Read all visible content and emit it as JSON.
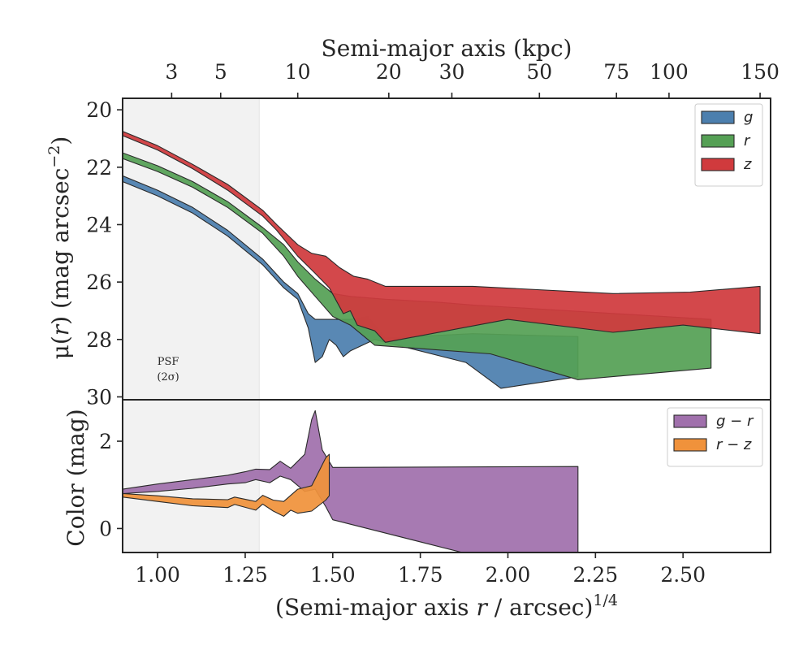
{
  "chart_data": [
    {
      "type": "area",
      "panel": "surface-brightness",
      "ylabel_parts": [
        "μ(",
        "r",
        ") (mag arcsec",
        "−2",
        ")"
      ],
      "xlim": [
        0.9,
        2.75
      ],
      "ylim": [
        30.1,
        19.6
      ],
      "y_inverted": true,
      "yticks": [
        20,
        22,
        24,
        26,
        28,
        30
      ],
      "top_axis": {
        "label": "Semi-major axis (kpc)",
        "ticks": [
          {
            "label": "3",
            "x": 1.04
          },
          {
            "label": "5",
            "x": 1.18
          },
          {
            "label": "10",
            "x": 1.4
          },
          {
            "label": "20",
            "x": 1.66
          },
          {
            "label": "30",
            "x": 1.84
          },
          {
            "label": "50",
            "x": 2.09
          },
          {
            "label": "75",
            "x": 2.31
          },
          {
            "label": "100",
            "x": 2.46
          },
          {
            "label": "150",
            "x": 2.72
          }
        ]
      },
      "psf_region": {
        "x_end": 1.29,
        "label_lines": [
          "PSF",
          "(2σ)"
        ]
      },
      "legend": {
        "position": "upper right"
      },
      "series": [
        {
          "name": "g",
          "color": "#4c7fae",
          "upper": [
            [
              0.9,
              22.3
            ],
            [
              1.0,
              22.8
            ],
            [
              1.1,
              23.4
            ],
            [
              1.2,
              24.2
            ],
            [
              1.3,
              25.2
            ],
            [
              1.36,
              26.0
            ],
            [
              1.4,
              26.4
            ],
            [
              1.43,
              27.1
            ],
            [
              1.45,
              27.3
            ],
            [
              1.55,
              27.3
            ],
            [
              1.6,
              27.2
            ],
            [
              1.65,
              27.95
            ],
            [
              1.9,
              27.8
            ],
            [
              2.2,
              27.9
            ]
          ],
          "lower": [
            [
              2.2,
              29.3
            ],
            [
              1.98,
              29.7
            ],
            [
              1.88,
              28.8
            ],
            [
              1.62,
              28.0
            ],
            [
              1.55,
              28.4
            ],
            [
              1.53,
              28.6
            ],
            [
              1.51,
              28.2
            ],
            [
              1.49,
              28.0
            ],
            [
              1.47,
              28.6
            ],
            [
              1.45,
              28.8
            ],
            [
              1.43,
              27.6
            ],
            [
              1.4,
              26.6
            ],
            [
              1.36,
              26.2
            ],
            [
              1.3,
              25.4
            ],
            [
              1.2,
              24.4
            ],
            [
              1.1,
              23.6
            ],
            [
              1.0,
              23.0
            ],
            [
              0.9,
              22.5
            ]
          ]
        },
        {
          "name": "r",
          "color": "#55a055",
          "upper": [
            [
              0.9,
              21.5
            ],
            [
              1.0,
              21.95
            ],
            [
              1.1,
              22.5
            ],
            [
              1.2,
              23.2
            ],
            [
              1.3,
              24.1
            ],
            [
              1.36,
              24.7
            ],
            [
              1.4,
              25.3
            ],
            [
              1.45,
              25.9
            ],
            [
              1.5,
              26.4
            ],
            [
              1.55,
              26.5
            ],
            [
              1.65,
              26.6
            ],
            [
              1.8,
              26.7
            ],
            [
              1.9,
              26.8
            ],
            [
              2.58,
              27.3
            ]
          ],
          "lower": [
            [
              2.58,
              29.0
            ],
            [
              2.2,
              29.4
            ],
            [
              1.95,
              28.5
            ],
            [
              1.62,
              28.2
            ],
            [
              1.55,
              27.5
            ],
            [
              1.5,
              27.2
            ],
            [
              1.45,
              26.5
            ],
            [
              1.4,
              25.8
            ],
            [
              1.36,
              25.1
            ],
            [
              1.3,
              24.3
            ],
            [
              1.2,
              23.4
            ],
            [
              1.1,
              22.7
            ],
            [
              1.0,
              22.15
            ],
            [
              0.9,
              21.7
            ]
          ]
        },
        {
          "name": "z",
          "color": "#d03a3d",
          "upper": [
            [
              0.9,
              20.75
            ],
            [
              1.0,
              21.25
            ],
            [
              1.1,
              21.9
            ],
            [
              1.2,
              22.6
            ],
            [
              1.3,
              23.5
            ],
            [
              1.34,
              24.0
            ],
            [
              1.4,
              24.7
            ],
            [
              1.44,
              25.0
            ],
            [
              1.48,
              25.1
            ],
            [
              1.52,
              25.5
            ],
            [
              1.56,
              25.8
            ],
            [
              1.6,
              25.9
            ],
            [
              1.65,
              26.15
            ],
            [
              1.9,
              26.15
            ],
            [
              2.3,
              26.4
            ],
            [
              2.52,
              26.35
            ],
            [
              2.72,
              26.15
            ]
          ],
          "lower": [
            [
              2.72,
              27.8
            ],
            [
              2.5,
              27.5
            ],
            [
              2.3,
              27.75
            ],
            [
              2.0,
              27.3
            ],
            [
              1.65,
              28.1
            ],
            [
              1.62,
              27.7
            ],
            [
              1.57,
              27.5
            ],
            [
              1.55,
              27.0
            ],
            [
              1.53,
              27.1
            ],
            [
              1.49,
              26.2
            ],
            [
              1.45,
              25.7
            ],
            [
              1.4,
              25.1
            ],
            [
              1.34,
              24.2
            ],
            [
              1.3,
              23.7
            ],
            [
              1.2,
              22.8
            ],
            [
              1.1,
              22.05
            ],
            [
              1.0,
              21.4
            ],
            [
              0.9,
              20.9
            ]
          ]
        }
      ]
    },
    {
      "type": "area",
      "panel": "color",
      "ylabel": "Color (mag)",
      "xlabel_parts": [
        "(Semi-major axis ",
        "r",
        " / arcsec)",
        "1/4"
      ],
      "xlim": [
        0.9,
        2.75
      ],
      "ylim": [
        -0.55,
        2.95
      ],
      "xticks": [
        1.0,
        1.25,
        1.5,
        1.75,
        2.0,
        2.25,
        2.5
      ],
      "xtick_labels": [
        "1.00",
        "1.25",
        "1.50",
        "1.75",
        "2.00",
        "2.25",
        "2.50"
      ],
      "yticks": [
        0,
        2
      ],
      "legend": {
        "position": "upper right"
      },
      "series": [
        {
          "name": "g − r",
          "color": "#a070ac",
          "upper": [
            [
              0.9,
              0.9
            ],
            [
              1.0,
              1.02
            ],
            [
              1.1,
              1.12
            ],
            [
              1.2,
              1.22
            ],
            [
              1.25,
              1.3
            ],
            [
              1.28,
              1.36
            ],
            [
              1.32,
              1.35
            ],
            [
              1.35,
              1.54
            ],
            [
              1.38,
              1.38
            ],
            [
              1.42,
              1.7
            ],
            [
              1.44,
              2.5
            ],
            [
              1.45,
              2.7
            ],
            [
              1.47,
              1.8
            ],
            [
              1.5,
              1.4
            ],
            [
              2.2,
              1.42
            ]
          ],
          "lower": [
            [
              2.2,
              -0.55
            ],
            [
              1.87,
              -0.55
            ],
            [
              1.5,
              0.2
            ],
            [
              1.48,
              0.5
            ],
            [
              1.45,
              0.9
            ],
            [
              1.42,
              0.85
            ],
            [
              1.38,
              1.12
            ],
            [
              1.35,
              1.2
            ],
            [
              1.32,
              1.05
            ],
            [
              1.28,
              1.12
            ],
            [
              1.25,
              1.05
            ],
            [
              1.2,
              1.02
            ],
            [
              1.1,
              0.92
            ],
            [
              1.0,
              0.85
            ],
            [
              0.9,
              0.8
            ]
          ]
        },
        {
          "name": "r − z",
          "color": "#f0923b",
          "upper": [
            [
              0.9,
              0.8
            ],
            [
              1.0,
              0.75
            ],
            [
              1.1,
              0.68
            ],
            [
              1.2,
              0.66
            ],
            [
              1.22,
              0.72
            ],
            [
              1.28,
              0.62
            ],
            [
              1.3,
              0.76
            ],
            [
              1.33,
              0.65
            ],
            [
              1.36,
              0.62
            ],
            [
              1.4,
              0.9
            ],
            [
              1.44,
              0.98
            ],
            [
              1.48,
              1.62
            ],
            [
              1.49,
              1.7
            ]
          ],
          "lower": [
            [
              1.49,
              0.75
            ],
            [
              1.48,
              0.65
            ],
            [
              1.44,
              0.4
            ],
            [
              1.4,
              0.35
            ],
            [
              1.38,
              0.42
            ],
            [
              1.36,
              0.28
            ],
            [
              1.33,
              0.4
            ],
            [
              1.3,
              0.56
            ],
            [
              1.28,
              0.42
            ],
            [
              1.22,
              0.55
            ],
            [
              1.2,
              0.48
            ],
            [
              1.1,
              0.52
            ],
            [
              1.0,
              0.62
            ],
            [
              0.9,
              0.72
            ]
          ]
        }
      ]
    }
  ]
}
